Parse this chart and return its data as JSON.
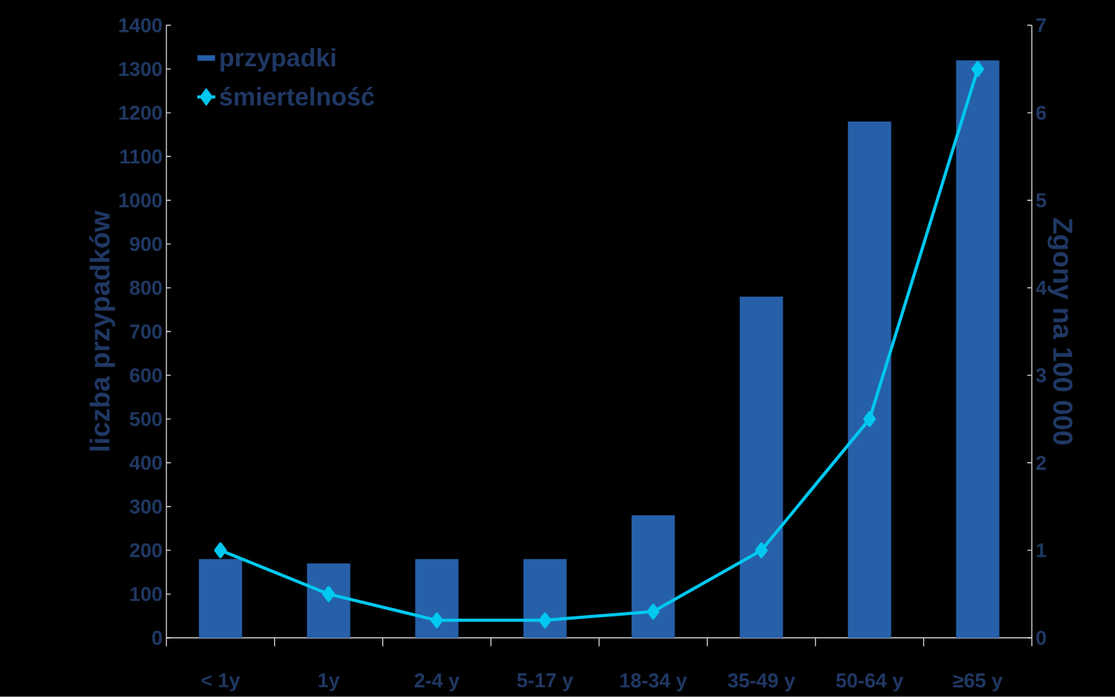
{
  "chart_data": {
    "type": "bar",
    "categories": [
      "< 1y",
      "1y",
      "2-4 y",
      "5-17 y",
      "18-34 y",
      "35-49 y",
      "50-64 y",
      "≥65 y"
    ],
    "series": [
      {
        "name": "przypadki",
        "color": "#2660a8",
        "values": [
          180,
          170,
          180,
          180,
          280,
          780,
          1180,
          1320
        ]
      },
      {
        "name": "śmiertelność",
        "type": "line",
        "axis": "y2",
        "color": "#00c8f0",
        "marker": "diamond",
        "values": [
          1.0,
          0.5,
          0.2,
          0.2,
          0.3,
          1.0,
          2.5,
          6.5
        ]
      }
    ],
    "ylabel": "liczba przypadków",
    "y2label": "Zgony na 100 000",
    "ylim": [
      0,
      1400
    ],
    "yticks": [
      0,
      100,
      200,
      300,
      400,
      500,
      600,
      700,
      800,
      900,
      1000,
      1100,
      1200,
      1300,
      1400
    ],
    "y2lim": [
      0,
      7
    ],
    "y2ticks": [
      0,
      1,
      2,
      3,
      4,
      5,
      6,
      7
    ],
    "legend": "top left",
    "grid": false
  }
}
